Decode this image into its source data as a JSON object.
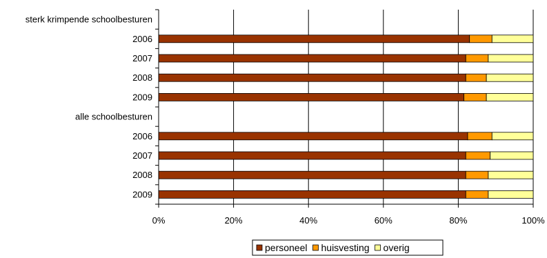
{
  "chart_data": {
    "type": "bar",
    "orientation": "horizontal",
    "stacked": true,
    "percent_scale": true,
    "categories": [
      "sterk krimpende schoolbesturen",
      "2006",
      "2007",
      "2008",
      "2009",
      "alle schoolbesturen",
      "2006",
      "2007",
      "2008",
      "2009"
    ],
    "is_header": [
      true,
      false,
      false,
      false,
      false,
      true,
      false,
      false,
      false,
      false
    ],
    "series": [
      {
        "name": "personeel",
        "color": "#993300",
        "values": [
          null,
          83,
          82,
          82,
          81.5,
          null,
          82.5,
          82,
          82,
          82
        ]
      },
      {
        "name": "huisvesting",
        "color": "#FF9900",
        "values": [
          null,
          6,
          6,
          5.5,
          6,
          null,
          6.5,
          6.5,
          6,
          6
        ]
      },
      {
        "name": "overig",
        "color": "#FFFF99",
        "values": [
          null,
          11,
          12,
          12.5,
          12.5,
          null,
          11,
          11.5,
          12,
          12
        ]
      }
    ],
    "xlim": [
      0,
      100
    ],
    "xticks": [
      "0%",
      "20%",
      "40%",
      "60%",
      "80%",
      "100%"
    ],
    "grid": true,
    "legend_position": "bottom"
  }
}
